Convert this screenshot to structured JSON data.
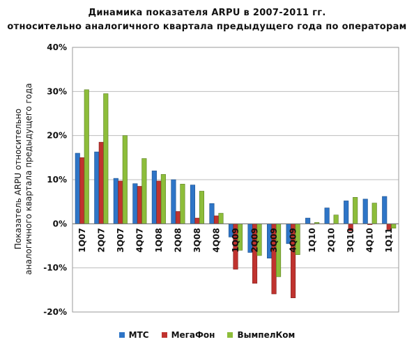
{
  "chart_data": {
    "type": "bar",
    "title": "Динамика показателя ARPU в 2007-2011 гг.",
    "subtitle": "относительно аналогичного квартала предыдущего года по операторам",
    "ylabel_line1": "Показатель ARPU относительно",
    "ylabel_line2": "аналогичного квартала предыдущего года",
    "xlabel": "",
    "ylim": [
      -20,
      40
    ],
    "yticks": [
      -20,
      -10,
      0,
      10,
      20,
      30,
      40
    ],
    "ytick_labels": [
      "-20%",
      "-10%",
      "0%",
      "10%",
      "20%",
      "30%",
      "40%"
    ],
    "categories": [
      "1Q07",
      "2Q07",
      "3Q07",
      "4Q07",
      "1Q08",
      "2Q08",
      "3Q08",
      "4Q08",
      "1Q09",
      "2Q09",
      "3Q09",
      "4Q09",
      "1Q10",
      "2Q10",
      "3Q10",
      "4Q10",
      "1Q11"
    ],
    "series": [
      {
        "name": "МТС",
        "color": "#2e75c7",
        "values": [
          16,
          16.3,
          10.3,
          9.1,
          12,
          10,
          8.8,
          4.6,
          -3,
          -6.5,
          -7.8,
          -4.5,
          1.3,
          3.6,
          5.2,
          5.6,
          6.2
        ]
      },
      {
        "name": "МегаФон",
        "color": "#c0332f",
        "values": [
          15,
          18.5,
          9.7,
          8.5,
          9.7,
          2.8,
          1.3,
          1.8,
          -10.3,
          -13.5,
          -15.9,
          -16.8,
          0,
          0,
          -1.6,
          -0.2,
          -1.3
        ]
      },
      {
        "name": "ВымпелКом",
        "color": "#8dbd3a",
        "values": [
          30.4,
          29.5,
          20,
          14.8,
          11.2,
          9,
          7.4,
          2.4,
          -6,
          -7.2,
          -12,
          -7,
          0.3,
          2,
          6,
          4.7,
          -1
        ]
      }
    ],
    "grid": true,
    "legend_position": "bottom"
  }
}
